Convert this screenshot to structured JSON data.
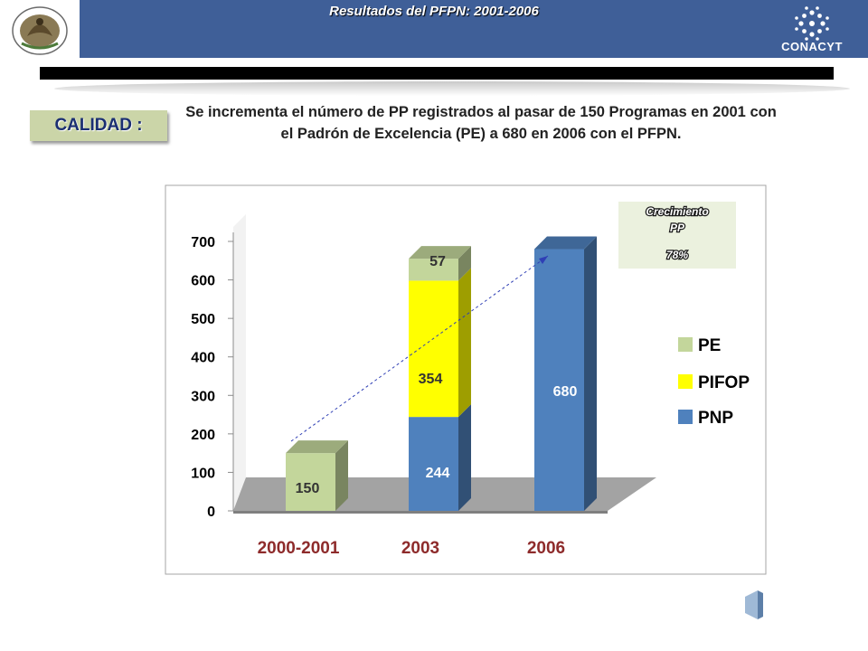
{
  "header": {
    "title": "Resultados del PFPN: 2001-2006",
    "logo_right_text": "CONACYT"
  },
  "badge": {
    "label": "CALIDAD :"
  },
  "description": "Se incrementa el número de PP registrados al pasar de 150 Programas en 2001 con  el Padrón de Excelencia (PE) a  680  en 2006 con el PFPN.",
  "growth_box": {
    "title_line1": "Crecimiento",
    "title_line2": "PP",
    "value": "78%"
  },
  "colors": {
    "PE": "#c3d69b",
    "PIFOP": "#ffff00",
    "PNP": "#4f81bd",
    "header": "#3f5f98"
  },
  "chart_data": {
    "type": "bar",
    "stacked": true,
    "categories": [
      "2000-2001",
      "2003",
      "2006"
    ],
    "series": [
      {
        "name": "PNP",
        "values": [
          0,
          244,
          680
        ]
      },
      {
        "name": "PIFOP",
        "values": [
          0,
          354,
          0
        ]
      },
      {
        "name": "PE",
        "values": [
          150,
          57,
          0
        ]
      }
    ],
    "data_labels": [
      "150",
      "57",
      "354",
      "244",
      "680"
    ],
    "y_ticks": [
      "0",
      "100",
      "200",
      "300",
      "400",
      "500",
      "600",
      "700"
    ],
    "ylim": [
      0,
      700
    ],
    "legend": [
      "PE",
      "PIFOP",
      "PNP"
    ],
    "legend_position": "right",
    "grid": false,
    "trend_arrow": "dashed, from top of 2000-2001 bar to top of 2006 bar"
  }
}
